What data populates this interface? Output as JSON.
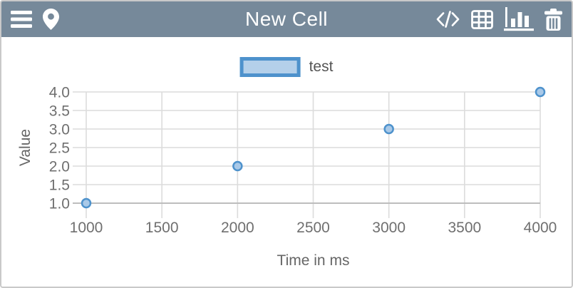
{
  "header": {
    "title": "New Cell",
    "background": "#76899a",
    "icon_color": "#ffffff",
    "left_icons": [
      "menu-icon",
      "location-pin-icon"
    ],
    "right_icons": [
      "code-icon",
      "table-icon",
      "bar-chart-icon",
      "trash-icon"
    ],
    "active_icon": "bar-chart-icon"
  },
  "legend": {
    "label": "test"
  },
  "chart_data": {
    "type": "scatter",
    "series": [
      {
        "name": "test",
        "points": [
          [
            1000,
            1.0
          ],
          [
            2000,
            2.0
          ],
          [
            3000,
            3.0
          ],
          [
            4000,
            4.0
          ]
        ]
      }
    ],
    "title": "",
    "xlabel": "Time in ms",
    "ylabel": "Value",
    "xlim": [
      1000,
      4000
    ],
    "ylim": [
      1.0,
      4.0
    ],
    "xticks": [
      1000,
      1500,
      2000,
      2500,
      3000,
      3500,
      4000
    ],
    "yticks": [
      1.0,
      1.5,
      2.0,
      2.5,
      3.0,
      3.5,
      4.0
    ],
    "grid": true,
    "legend_position": "top-center",
    "marker": {
      "shape": "circle",
      "radius": 6,
      "stroke": "#4e92cc",
      "fill": "#a9c9e8"
    }
  },
  "colors": {
    "header_bg": "#76899a",
    "accent": "#4e92cc",
    "accent_light": "#b4d0ea",
    "grid": "#dcdcdc",
    "axis": "#bdbdbd",
    "tick_text": "#6f6f6f",
    "label_text": "#666666",
    "legend_text": "#555555",
    "border": "#c9c9c9",
    "icon": "#ffffff"
  }
}
